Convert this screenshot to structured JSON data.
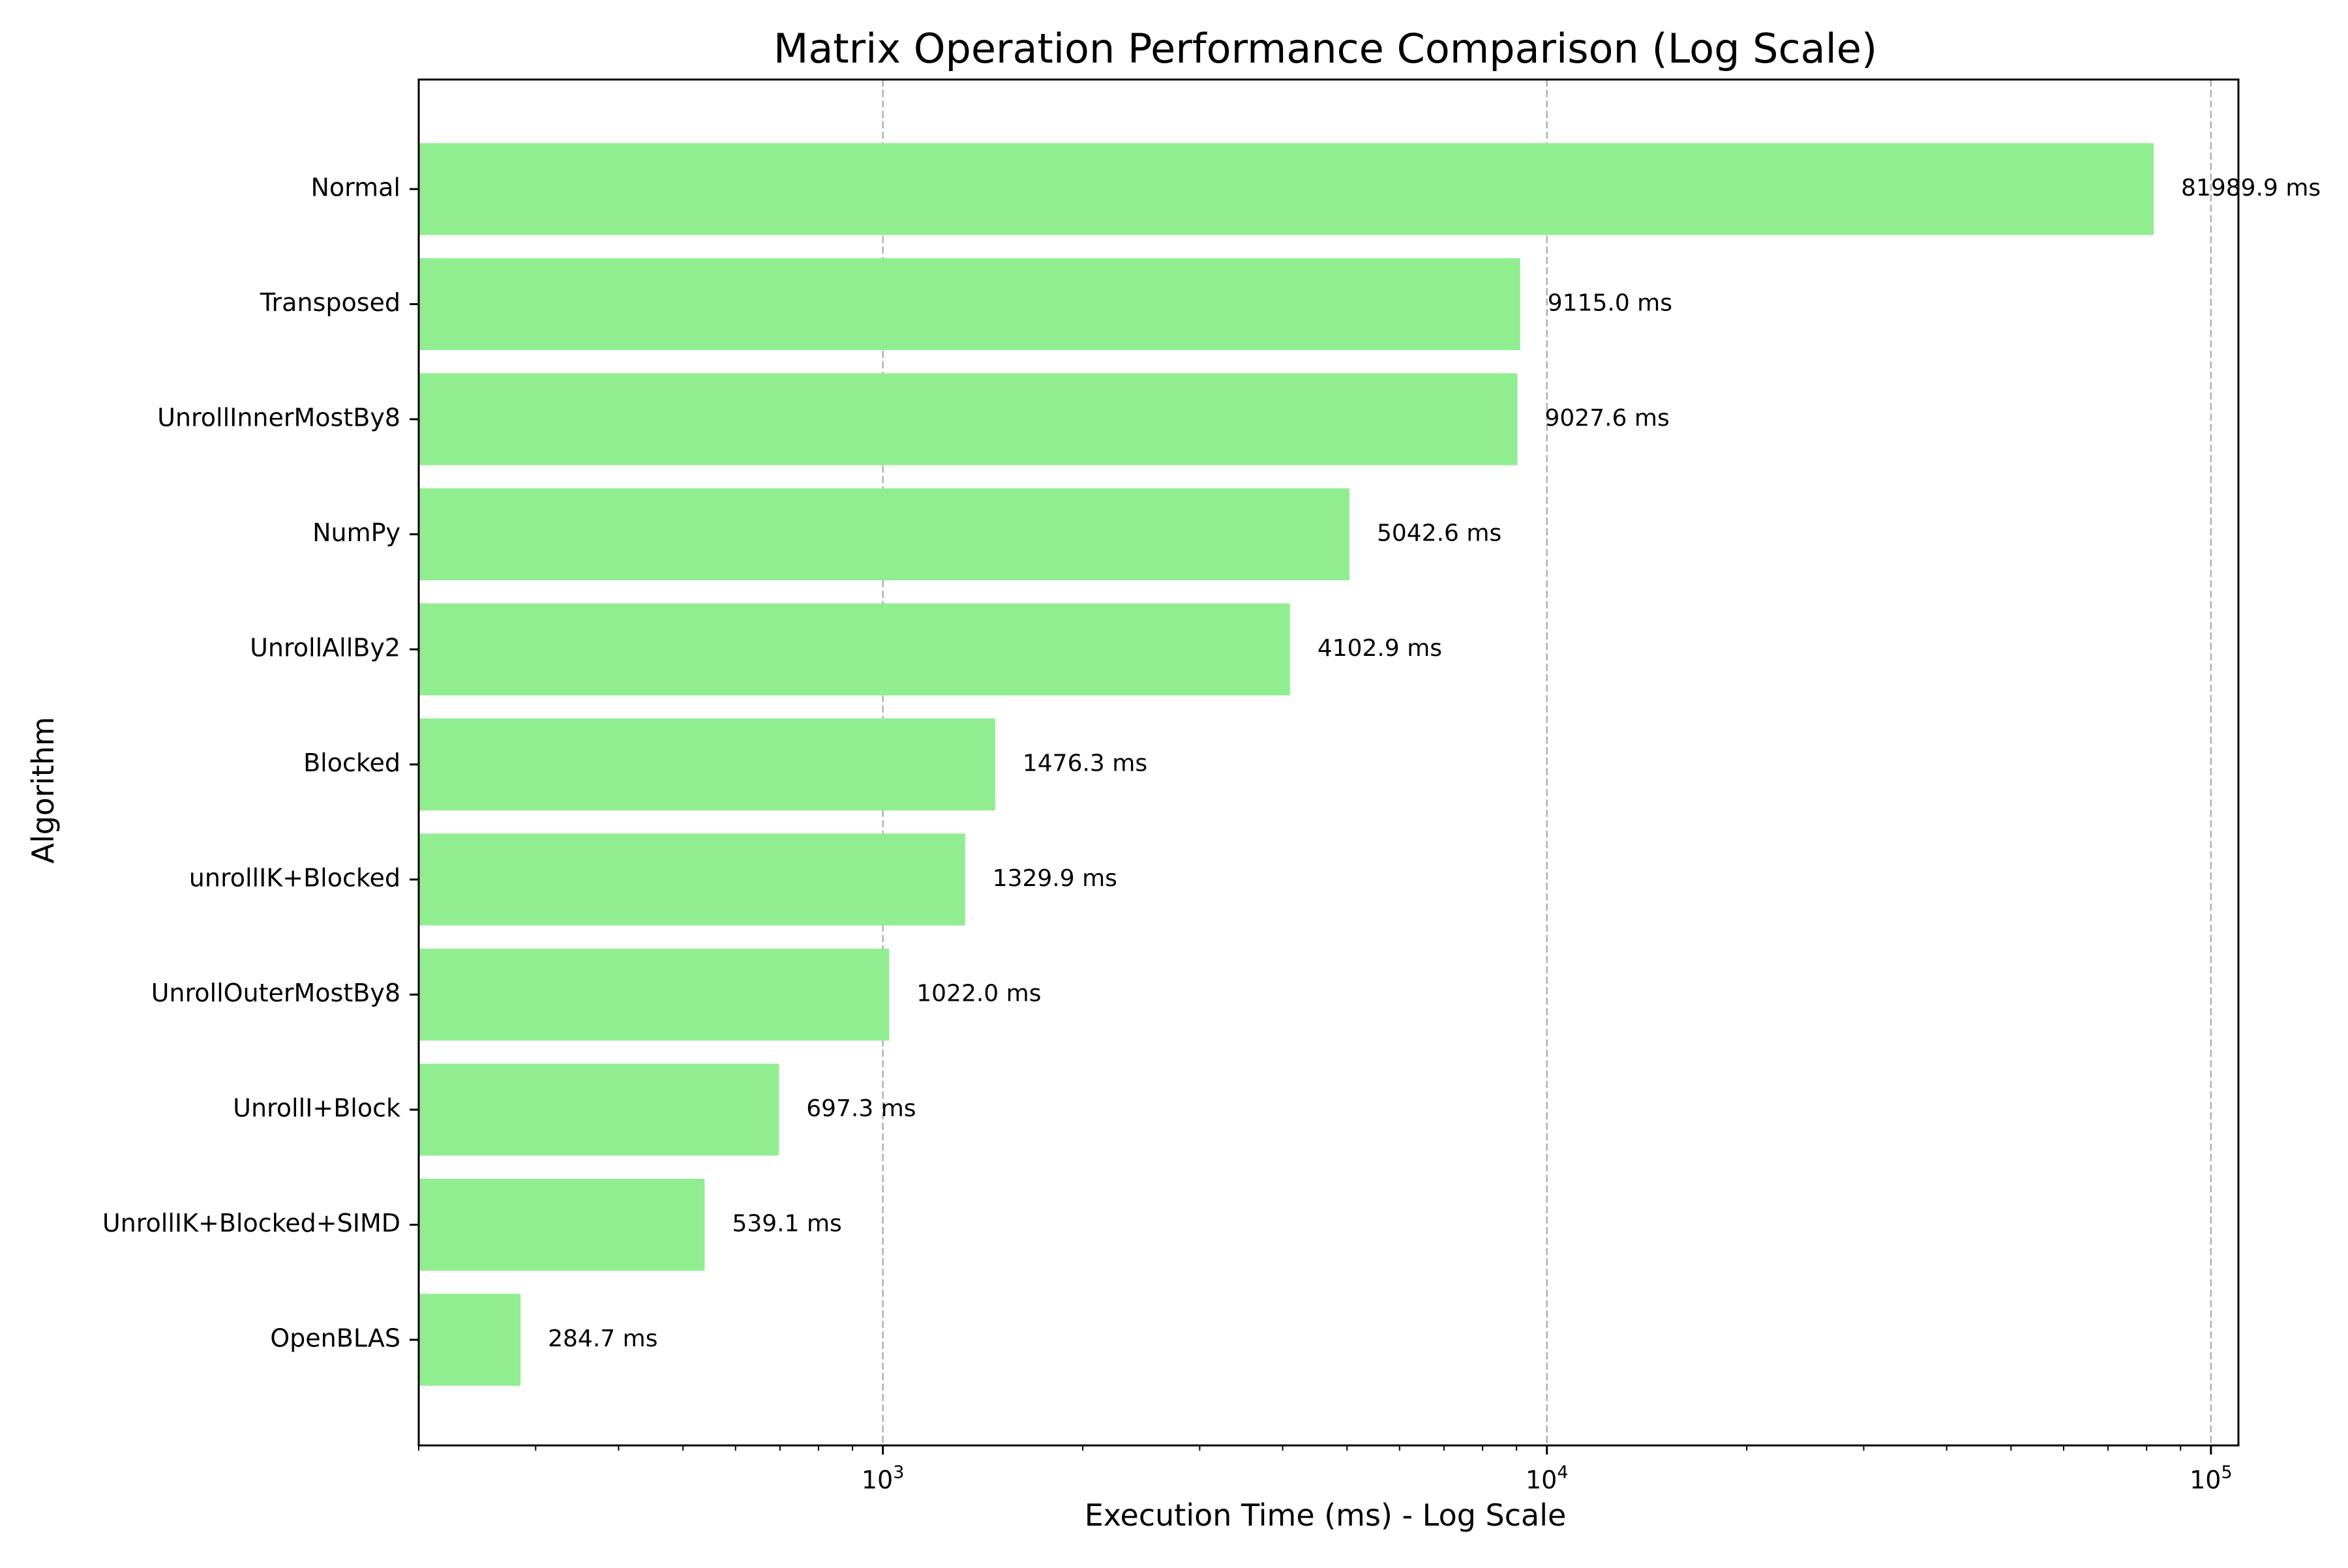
{
  "chart_data": {
    "type": "bar",
    "orientation": "horizontal",
    "title": "Matrix Operation Performance Comparison (Log Scale)",
    "xlabel": "Execution Time (ms) - Log Scale",
    "ylabel": "Algorithm",
    "x_scale": "log",
    "xlim": [
      200,
      110000
    ],
    "x_major_ticks": [
      1000,
      10000,
      100000
    ],
    "x_tick_labels": [
      {
        "base": "10",
        "exp": "3"
      },
      {
        "base": "10",
        "exp": "4"
      },
      {
        "base": "10",
        "exp": "5"
      }
    ],
    "grid": "x-major, dashed",
    "bar_color": "#90ee90",
    "categories": [
      "Normal",
      "Transposed",
      "UnrollInnerMostBy8",
      "NumPy",
      "UnrollAllBy2",
      "Blocked",
      "unrollIK+Blocked",
      "UnrollOuterMostBy8",
      "UnrollI+Block",
      "UnrollIK+Blocked+SIMD",
      "OpenBLAS"
    ],
    "values": [
      81989.9,
      9115.0,
      9027.6,
      5042.6,
      4102.9,
      1476.3,
      1329.9,
      1022.0,
      697.3,
      539.1,
      284.7
    ],
    "data_labels": [
      "81989.9 ms",
      "9115.0 ms",
      "9027.6 ms",
      "5042.6 ms",
      "4102.9 ms",
      "1476.3 ms",
      "1329.9 ms",
      "1022.0 ms",
      "697.3 ms",
      "539.1 ms",
      "284.7 ms"
    ]
  }
}
